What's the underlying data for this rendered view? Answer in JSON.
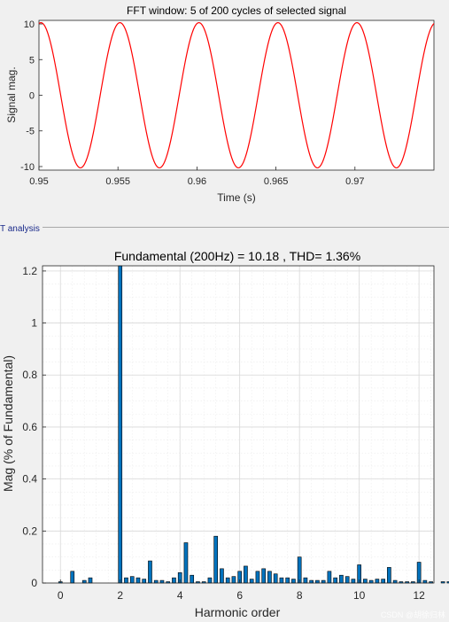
{
  "section_label": "T analysis",
  "watermark": "CSDN @胡徐归林",
  "colors": {
    "signal": "#ff0000",
    "bar": "#0072bd",
    "grid": "#d8d8d8"
  },
  "chart_data": [
    {
      "type": "line",
      "title": "FFT window: 5 of 200 cycles of selected signal",
      "xlabel": "Time (s)",
      "ylabel": "Signal mag.",
      "xlim": [
        0.95,
        0.975
      ],
      "ylim": [
        -10.5,
        10.5
      ],
      "xticks": [
        0.95,
        0.955,
        0.96,
        0.965,
        0.97
      ],
      "xtick_labels": [
        "0.95",
        "0.955",
        "0.96",
        "0.965",
        "0.97"
      ],
      "yticks": [
        -10,
        -5,
        0,
        5,
        10
      ],
      "ytick_labels": [
        "-10",
        "-5",
        "0",
        "5",
        "10"
      ],
      "grid": false,
      "series": [
        {
          "frequency_hz": 200,
          "amplitude": 10.18,
          "phase_deg": 81,
          "x_start": 0.95,
          "x_end": 0.975
        }
      ]
    },
    {
      "type": "bar",
      "title": "Fundamental (200Hz) = 10.18 , THD= 1.36%",
      "xlabel": "Harmonic order",
      "ylabel": "Mag (% of Fundamental)",
      "xlim": [
        -0.6,
        12.5
      ],
      "ylim": [
        0,
        1.22
      ],
      "xticks": [
        0,
        2,
        4,
        6,
        8,
        10,
        12
      ],
      "xtick_labels": [
        "0",
        "2",
        "4",
        "6",
        "8",
        "10",
        "12"
      ],
      "yticks": [
        0,
        0.2,
        0.4,
        0.6,
        0.8,
        1,
        1.2
      ],
      "ytick_labels": [
        "0",
        "0.2",
        "0.4",
        "0.6",
        "0.8",
        "1",
        "1.2"
      ],
      "grid": true,
      "minor_grid": true,
      "bar_width": 0.12,
      "bar_step": 0.2,
      "x_start": 0,
      "values": [
        0.005,
        0.0,
        0.045,
        0.0,
        0.01,
        0.02,
        0.0,
        0.0,
        0.0,
        0.0,
        1.22,
        0.02,
        0.025,
        0.02,
        0.015,
        0.085,
        0.01,
        0.01,
        0.005,
        0.02,
        0.04,
        0.155,
        0.03,
        0.005,
        0.005,
        0.02,
        0.18,
        0.055,
        0.02,
        0.025,
        0.045,
        0.065,
        0.015,
        0.045,
        0.055,
        0.045,
        0.035,
        0.02,
        0.02,
        0.015,
        0.1,
        0.02,
        0.01,
        0.01,
        0.01,
        0.045,
        0.02,
        0.03,
        0.025,
        0.015,
        0.07,
        0.015,
        0.01,
        0.015,
        0.015,
        0.06,
        0.01,
        0.005,
        0.005,
        0.005,
        0.08,
        0.01,
        0.005,
        0.0,
        0.005,
        0.005,
        0.03,
        0.0,
        0.005
      ]
    }
  ]
}
